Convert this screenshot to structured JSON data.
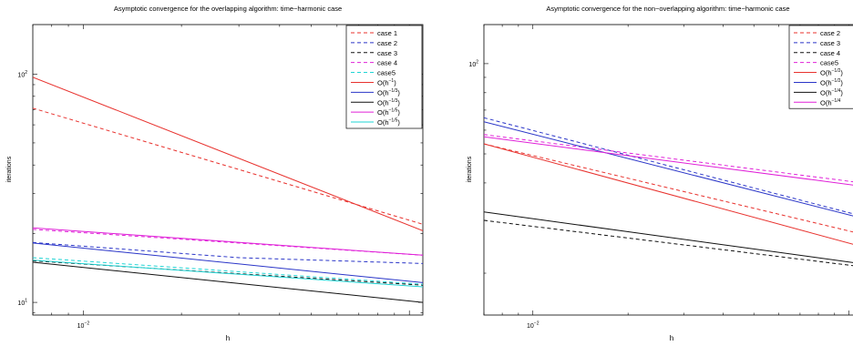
{
  "chart_data": [
    {
      "type": "line",
      "title": "Asymptotic convergence for the overlapping algorithm: time−harmonic case",
      "xlabel": "h",
      "ylabel": "iterations",
      "xscale": "log",
      "yscale": "log",
      "xlim": [
        0.007,
        0.11
      ],
      "ylim": [
        8.8,
        165
      ],
      "xticks": [
        {
          "value": 0.01,
          "base": "10",
          "exp": "−2"
        }
      ],
      "yticks": [
        {
          "value": 10,
          "base": "10",
          "exp": "1"
        },
        {
          "value": 100,
          "base": "10",
          "exp": "2"
        }
      ],
      "legend_position": "top-right",
      "series": [
        {
          "name": "case 1",
          "style": "dashed",
          "color": "#e8322e",
          "x": [
            0.007,
            0.11
          ],
          "y": [
            71,
            22
          ]
        },
        {
          "name": "case 2",
          "style": "dashed",
          "color": "#2a35c8",
          "x": [
            0.007,
            0.03,
            0.11
          ],
          "y": [
            18.3,
            15.7,
            14.8
          ]
        },
        {
          "name": "case 3",
          "style": "dashed",
          "color": "#111111",
          "x": [
            0.007,
            0.11
          ],
          "y": [
            15.2,
            11.9
          ]
        },
        {
          "name": "case 4",
          "style": "dashed",
          "color": "#e020d8",
          "x": [
            0.007,
            0.11
          ],
          "y": [
            20.9,
            16.1
          ]
        },
        {
          "name": "case5",
          "style": "dashed",
          "color": "#1fd4d4",
          "x": [
            0.007,
            0.11
          ],
          "y": [
            15.7,
            12.0
          ]
        },
        {
          "name": "O(h⁻¹)",
          "label_base": "O(h",
          "label_exp": "−1",
          "label_end": ")",
          "style": "solid",
          "color": "#e8322e",
          "x": [
            0.007,
            0.11
          ],
          "y": [
            97,
            20.6
          ]
        },
        {
          "name": "O(h⁻¹ᐟ³)",
          "label_base": "O(h",
          "label_exp": "−1/3",
          "label_end": ")",
          "style": "solid",
          "color": "#2a35c8",
          "x": [
            0.007,
            0.11
          ],
          "y": [
            18.2,
            12.2
          ]
        },
        {
          "name": "O(h⁻¹ᐟ³)",
          "label_base": "O(h",
          "label_exp": "−1/3",
          "label_end": ")",
          "style": "solid",
          "color": "#111111",
          "x": [
            0.007,
            0.11
          ],
          "y": [
            15.0,
            10.0
          ]
        },
        {
          "name": "O(h⁻¹ᐟ⁵)",
          "label_base": "O(h",
          "label_exp": "−1/5",
          "label_end": ")",
          "style": "solid",
          "color": "#e020d8",
          "x": [
            0.007,
            0.11
          ],
          "y": [
            21.2,
            16.1
          ]
        },
        {
          "name": "O(h⁻¹ᐟ⁵)",
          "label_base": "O(h",
          "label_exp": "−1/5",
          "label_end": ")",
          "style": "solid",
          "color": "#1fd4d4",
          "x": [
            0.007,
            0.11
          ],
          "y": [
            15.3,
            11.7
          ]
        }
      ]
    },
    {
      "type": "line",
      "title": "Asymptotic convergence for the non−overlapping algorithm: time−harmonic case",
      "xlabel": "h",
      "ylabel": "iterations",
      "xscale": "log",
      "yscale": "log",
      "xlim": [
        0.007,
        0.11
      ],
      "ylim": [
        14.5,
        135
      ],
      "xticks": [
        {
          "value": 0.01,
          "base": "10",
          "exp": "−2"
        }
      ],
      "yticks": [
        {
          "value": 100,
          "base": "10",
          "exp": "2"
        }
      ],
      "legend_position": "top-right",
      "series": [
        {
          "name": "case 2",
          "style": "dashed",
          "color": "#e8322e",
          "x": [
            0.007,
            0.11
          ],
          "y": [
            54,
            27
          ]
        },
        {
          "name": "case 3",
          "style": "dashed",
          "color": "#2a35c8",
          "x": [
            0.007,
            0.11
          ],
          "y": [
            66,
            31
          ]
        },
        {
          "name": "case 4",
          "style": "dashed",
          "color": "#111111",
          "x": [
            0.007,
            0.11
          ],
          "y": [
            30,
            21
          ]
        },
        {
          "name": "case5",
          "style": "dashed",
          "color": "#e020d8",
          "x": [
            0.007,
            0.11
          ],
          "y": [
            58,
            40
          ]
        },
        {
          "name": "O(h⁻¹ᐟ²)",
          "label_base": "O(h",
          "label_exp": "−1/2",
          "label_end": ")",
          "style": "solid",
          "color": "#e8322e",
          "x": [
            0.007,
            0.11
          ],
          "y": [
            54,
            24.5
          ]
        },
        {
          "name": "O(h⁻¹ᐟ²)",
          "label_base": "O(h",
          "label_exp": "−1/2",
          "label_end": ")",
          "style": "solid",
          "color": "#2a35c8",
          "x": [
            0.007,
            0.11
          ],
          "y": [
            64,
            30.5
          ]
        },
        {
          "name": "O(h⁻¹ᐟ⁴)",
          "label_base": "O(h",
          "label_exp": "−1/4",
          "label_end": ")",
          "style": "solid",
          "color": "#111111",
          "x": [
            0.007,
            0.11
          ],
          "y": [
            32,
            21.5
          ]
        },
        {
          "name": "O(h⁻¹ᐟ⁴)",
          "label_base": "O(h",
          "label_exp": "−1/4",
          "label_end": "",
          "style": "solid",
          "color": "#e020d8",
          "x": [
            0.007,
            0.11
          ],
          "y": [
            57,
            39
          ]
        }
      ]
    }
  ]
}
